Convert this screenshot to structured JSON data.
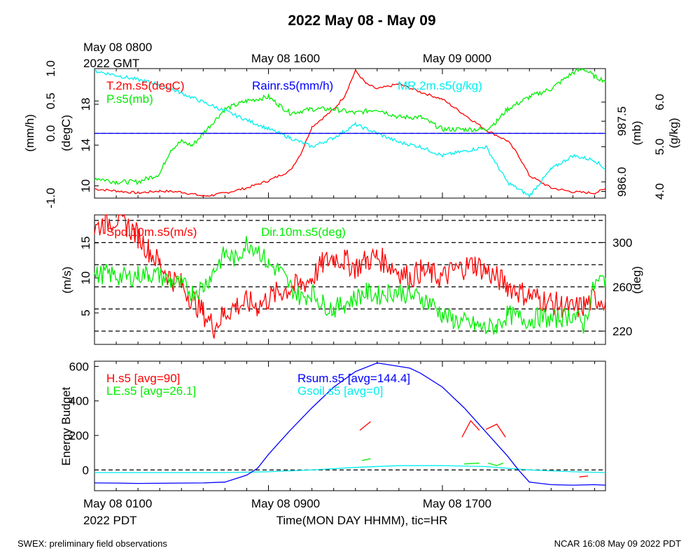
{
  "title": "2022 May 08 - May 09",
  "top_time_labels": [
    "May 08 1600",
    "May 09 0000"
  ],
  "top_start_label": [
    "May 08 0800",
    "2022 GMT"
  ],
  "bottom_time_labels": [
    "May 08 0100",
    "May 08 0900",
    "May 08 1700"
  ],
  "bottom_start_sub": "2022 PDT",
  "xlabel": "Time(MON DAY HHMM), tic=HR",
  "footer_left": "SWEX: preliminary field observations",
  "footer_right": "NCAR 16:08 May 09 2022 PDT",
  "colors": {
    "red": "#ff0000",
    "green": "#00ee00",
    "blue": "#0000ff",
    "cyan": "#00eeee"
  },
  "chart_data": [
    {
      "type": "line",
      "x_range_hours_pdt": [
        0,
        23.5
      ],
      "axes": {
        "rain": {
          "label": "(mm/h)",
          "range": [
            -1.0,
            1.0
          ],
          "ticks": [
            "-1.0",
            "0.0",
            "0.5",
            "1.0"
          ],
          "tick_values": [
            -1.0,
            0.0,
            0.5,
            1.0
          ]
        },
        "temp": {
          "label": "(degC)",
          "range": [
            8.8,
            21.5
          ],
          "ticks": [
            "10",
            "14",
            "18"
          ],
          "tick_values": [
            10,
            14,
            18
          ]
        },
        "pres": {
          "label": "(mb)",
          "range": [
            985.6,
            988.8
          ],
          "ticks": [
            "986.0",
            "987.5"
          ],
          "tick_values": [
            986.0,
            987.5
          ]
        },
        "mr": {
          "label": "(g/kg)",
          "range": [
            3.85,
            6.75
          ],
          "ticks": [
            "4.0",
            "5.0",
            "6.0"
          ],
          "tick_values": [
            4.0,
            5.0,
            6.0
          ]
        }
      },
      "series": [
        {
          "name": "T.2m.s5(degC)",
          "color": "#ff0000",
          "axis": "temp",
          "x": [
            0,
            1,
            2,
            3,
            4,
            5,
            5.5,
            6,
            7,
            8,
            9,
            9.5,
            10,
            11,
            11.5,
            12,
            12.5,
            13,
            14,
            15,
            16,
            17,
            18,
            19,
            19.5,
            20,
            21,
            22,
            23,
            23.5
          ],
          "y": [
            9.7,
            9.5,
            9.3,
            9.5,
            9.4,
            9.0,
            9.1,
            9.3,
            9.8,
            10.5,
            11.5,
            13.2,
            15.8,
            17.5,
            18.8,
            21.3,
            20.0,
            19.5,
            20.0,
            19.2,
            18.5,
            17.0,
            15.5,
            14.4,
            13.0,
            11.0,
            9.8,
            9.4,
            9.3,
            9.7
          ]
        },
        {
          "name": "P.s5(mb)",
          "color": "#00ee00",
          "axis": "pres",
          "x": [
            0,
            1,
            2,
            3,
            3.5,
            4,
            4.5,
            5,
            6,
            7,
            8,
            8.5,
            9,
            10,
            11,
            12,
            13,
            14,
            15,
            16,
            17,
            18,
            18.5,
            19,
            20,
            21,
            22,
            22.5,
            23,
            23.5
          ],
          "y": [
            986.1,
            986.0,
            986.0,
            986.2,
            986.8,
            987.0,
            986.9,
            987.2,
            987.8,
            988.0,
            988.1,
            987.9,
            987.7,
            987.8,
            987.8,
            987.7,
            987.8,
            987.6,
            987.6,
            987.3,
            987.3,
            987.3,
            987.5,
            987.8,
            988.1,
            988.3,
            988.7,
            988.8,
            988.6,
            988.5
          ]
        },
        {
          "name": "MR.2m.s5(g/kg)",
          "color": "#00eeee",
          "axis": "mr",
          "x": [
            0,
            1,
            2,
            3,
            4,
            5,
            6,
            7,
            8,
            9,
            10,
            11,
            12,
            13,
            14,
            15,
            16,
            17,
            18,
            18.5,
            19,
            20,
            20.5,
            21,
            22,
            23,
            23.5
          ],
          "y": [
            6.7,
            6.6,
            6.5,
            6.4,
            6.2,
            6.0,
            5.8,
            5.6,
            5.4,
            5.2,
            5.0,
            5.2,
            5.5,
            5.3,
            5.1,
            5.0,
            4.8,
            4.9,
            5.0,
            4.6,
            4.2,
            3.9,
            4.2,
            4.5,
            4.8,
            4.7,
            4.5
          ]
        },
        {
          "name": "Rainr.s5(mm/h)",
          "color": "#0000ff",
          "axis": "rain",
          "x": [
            0,
            23.5
          ],
          "y": [
            0.0,
            0.0
          ]
        }
      ],
      "reference_lines": [
        {
          "axis": "rain",
          "value": 0.0,
          "style": "dashed"
        }
      ]
    },
    {
      "type": "line",
      "x_range_hours_pdt": [
        0,
        23.5
      ],
      "axes": {
        "speed": {
          "label": "(m/s)",
          "range": [
            0.5,
            19.0
          ],
          "ticks": [
            "5",
            "10",
            "15"
          ],
          "tick_values": [
            5,
            10,
            15
          ]
        },
        "dir": {
          "label": "(deg)",
          "range": [
            208,
            325
          ],
          "ticks": [
            "220",
            "260",
            "300"
          ],
          "tick_values": [
            220,
            260,
            300
          ]
        }
      },
      "series": [
        {
          "name": "Spd.10m.s5(m/s)",
          "color": "#ff0000",
          "axis": "speed",
          "x": [
            0,
            0.5,
            1,
            1.5,
            2,
            2.5,
            3,
            3.5,
            4,
            4.5,
            5,
            5.5,
            6,
            6.5,
            7,
            7.5,
            8,
            8.5,
            9,
            9.5,
            10,
            10.5,
            11,
            11.5,
            12,
            12.5,
            13,
            13.5,
            14,
            14.5,
            15,
            15.5,
            16,
            16.5,
            17,
            17.5,
            18,
            18.5,
            19,
            19.5,
            20,
            20.5,
            21,
            21.5,
            22,
            22.5,
            23,
            23.5
          ],
          "y": [
            17,
            18,
            18.5,
            17.5,
            16,
            14,
            12,
            10,
            9,
            7,
            5,
            3,
            5,
            6,
            6.5,
            6,
            7,
            8,
            8.5,
            9,
            10,
            12,
            13,
            12.5,
            11.5,
            12.5,
            13,
            12,
            11,
            10,
            11,
            10.5,
            10,
            11,
            11.5,
            12,
            11,
            10,
            9,
            8,
            7.5,
            7,
            6.5,
            6,
            5.5,
            6,
            7,
            7
          ]
        },
        {
          "name": "Dir.10m.s5(deg)",
          "color": "#00ee00",
          "axis": "dir",
          "x": [
            0,
            0.5,
            1,
            1.5,
            2,
            2.5,
            3,
            3.5,
            4,
            4.5,
            5,
            5.5,
            6,
            6.5,
            7,
            7.5,
            8,
            8.5,
            9,
            9.5,
            10,
            10.5,
            11,
            11.5,
            12,
            12.5,
            13,
            13.5,
            14,
            14.5,
            15,
            15.5,
            16,
            16.5,
            17,
            17.5,
            18,
            18.5,
            19,
            19.5,
            20,
            20.5,
            21,
            21.5,
            22,
            22.5,
            23,
            23.5
          ],
          "y": [
            270,
            272,
            270,
            268,
            271,
            272,
            270,
            265,
            262,
            255,
            260,
            275,
            290,
            285,
            300,
            295,
            280,
            275,
            260,
            250,
            255,
            245,
            240,
            245,
            250,
            255,
            252,
            255,
            256,
            252,
            250,
            245,
            235,
            230,
            228,
            225,
            222,
            225,
            235,
            232,
            230,
            233,
            230,
            232,
            235,
            225,
            262,
            268
          ]
        }
      ],
      "reference_lines": [
        {
          "axis": "dir",
          "values": [
            220,
            240,
            260,
            280,
            300,
            320
          ],
          "style": "dashed"
        }
      ]
    },
    {
      "type": "line",
      "x_range_hours_pdt": [
        0,
        23.5
      ],
      "ylabel": "Energy Budget",
      "yticks": [
        "0",
        "200",
        "400",
        "600"
      ],
      "ytick_values": [
        0,
        200,
        400,
        600
      ],
      "ylim": [
        -120,
        630
      ],
      "series": [
        {
          "name": "H.s5 [avg=90]",
          "color": "#ff0000",
          "segments": [
            {
              "x": [
                12.2,
                12.7
              ],
              "y": [
                230,
                280
              ]
            },
            {
              "x": [
                16.9,
                17.3,
                17.7
              ],
              "y": [
                190,
                285,
                230
              ]
            },
            {
              "x": [
                18.0,
                18.5,
                18.9
              ],
              "y": [
                235,
                265,
                190
              ]
            },
            {
              "x": [
                22.3,
                22.7
              ],
              "y": [
                -40,
                -35
              ]
            }
          ]
        },
        {
          "name": "LE.s5 [avg=26.1]",
          "color": "#00ee00",
          "segments": [
            {
              "x": [
                12.3,
                12.7
              ],
              "y": [
                55,
                65
              ]
            },
            {
              "x": [
                17.0,
                17.7
              ],
              "y": [
                35,
                40
              ]
            },
            {
              "x": [
                18.1,
                18.5,
                18.8
              ],
              "y": [
                40,
                25,
                40
              ]
            }
          ]
        },
        {
          "name": "Rsum.s5 [avg=144.4]",
          "color": "#0000ff",
          "x": [
            0,
            1,
            2,
            3,
            4,
            5,
            6,
            7,
            7.5,
            8,
            8.5,
            9,
            10,
            11,
            12,
            13,
            14,
            14.5,
            15,
            16,
            17,
            18,
            19,
            19.5,
            20,
            21,
            22,
            23,
            23.5
          ],
          "y": [
            -75,
            -76,
            -78,
            -77,
            -76,
            -75,
            -70,
            -30,
            10,
            90,
            160,
            230,
            360,
            480,
            570,
            620,
            600,
            590,
            560,
            480,
            360,
            220,
            80,
            0,
            -70,
            -85,
            -88,
            -85,
            -88
          ]
        },
        {
          "name": "Gsoil.s5 [avg=0]",
          "color": "#00eeee",
          "x": [
            0,
            3,
            6,
            8,
            10,
            12,
            14,
            16,
            18,
            20,
            22,
            23.5
          ],
          "y": [
            -15,
            -15,
            -15,
            -10,
            0,
            15,
            25,
            25,
            20,
            0,
            -10,
            -15
          ]
        }
      ],
      "reference_lines": [
        {
          "value": 0,
          "style": "dashed"
        }
      ]
    }
  ]
}
